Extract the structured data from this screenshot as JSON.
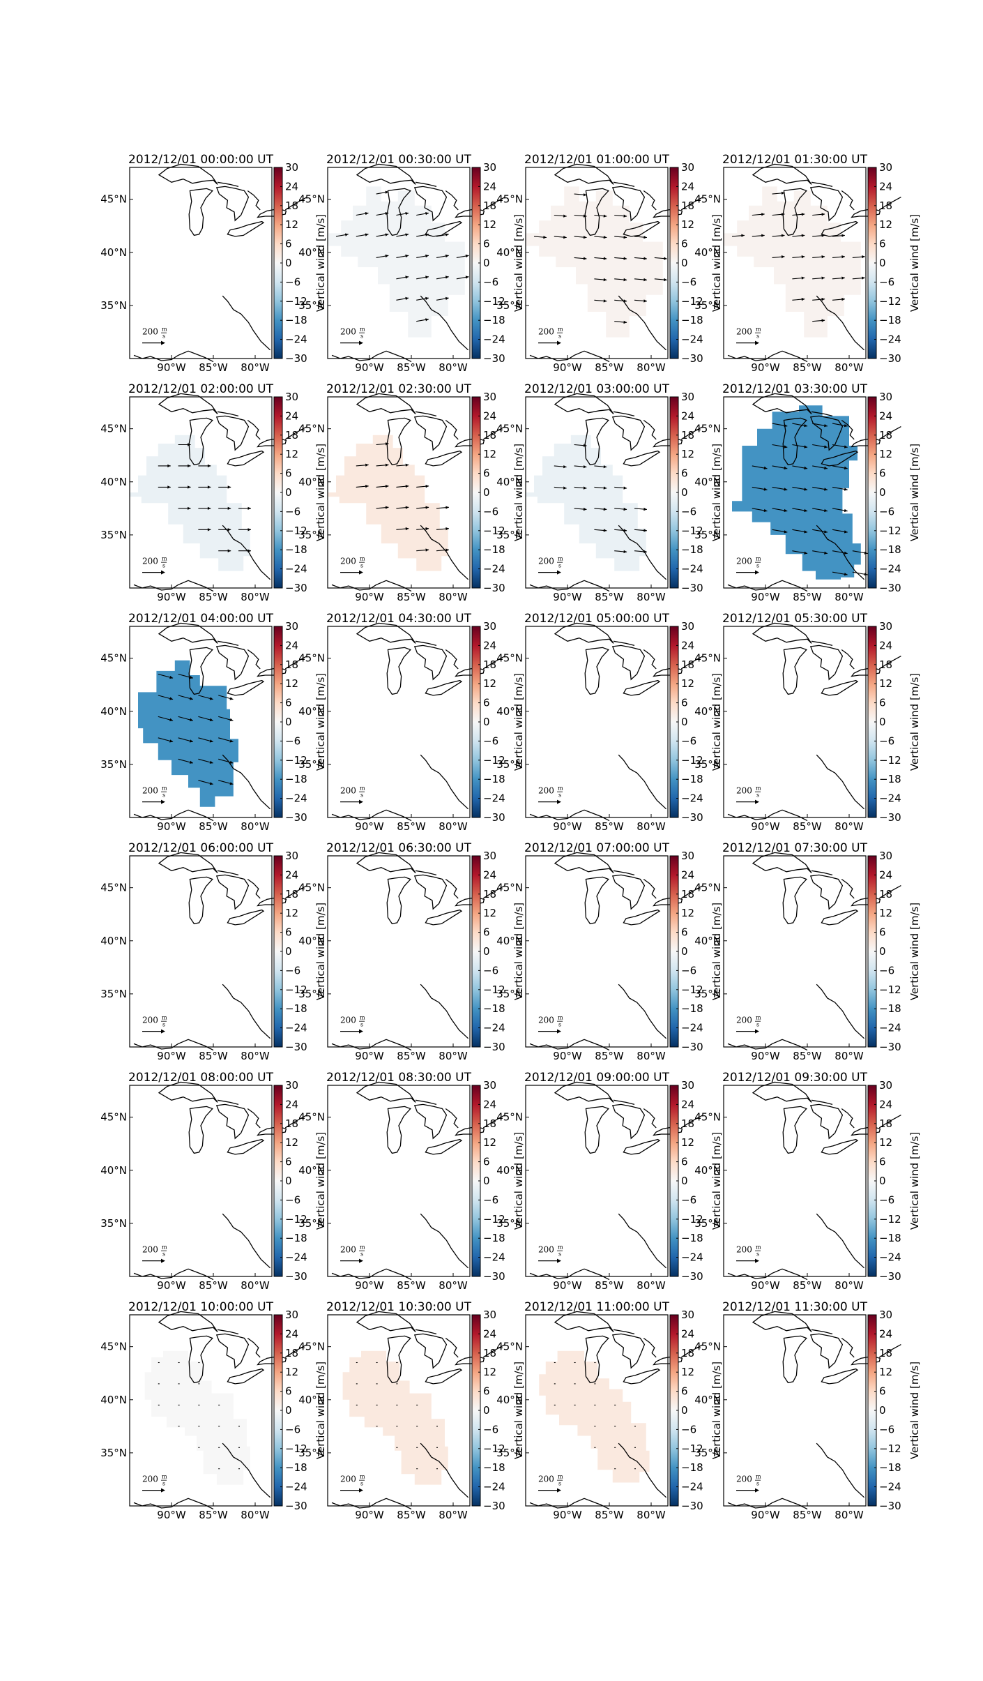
{
  "figure": {
    "colorbar_label": "Vertical wind [m/s]",
    "colorbar_ticks": [
      "30",
      "24",
      "18",
      "12",
      "6",
      "0",
      "−6",
      "−12",
      "−18",
      "−24",
      "−30"
    ],
    "lon_ticks": [
      "90°W",
      "85°W",
      "80°W"
    ],
    "lat_ticks": [
      "45°N",
      "40°N",
      "35°N"
    ],
    "scale_label": "200",
    "scale_unit_num": "m",
    "scale_unit_den": "s"
  },
  "colors": {
    "strong_blue": "#4393c3",
    "light_blue": "#e4eef6",
    "very_light_blue": "#f1f4f8",
    "light_orange": "#fae3d5",
    "very_light_orange": "#fbefe9",
    "light_grey": "#f3f3f3",
    "colorbar_stops": [
      "#67001f",
      "#b2182b",
      "#d6604d",
      "#f4a582",
      "#fddbc7",
      "#f7f7f7",
      "#d1e5f0",
      "#92c5de",
      "#4393c3",
      "#2166ac",
      "#053061"
    ]
  },
  "chart_data": {
    "type": "heatmap",
    "colorscale": "RdBu_r",
    "clim": [
      -30,
      30
    ],
    "xlim_deg_west": [
      95,
      78
    ],
    "ylim_deg_north": [
      30,
      48
    ],
    "panels": [
      {
        "title": "2012/12/01 00:00:00 UT",
        "region": "none",
        "vertical_wind": null,
        "arrow_angle_deg": 0
      },
      {
        "title": "2012/12/01 00:30:00 UT",
        "region": "medium",
        "vertical_wind": -1,
        "arrow_angle_deg": -10
      },
      {
        "title": "2012/12/01 01:00:00 UT",
        "region": "medium",
        "vertical_wind": 1,
        "arrow_angle_deg": 5
      },
      {
        "title": "2012/12/01 01:30:00 UT",
        "region": "medium",
        "vertical_wind": 1,
        "arrow_angle_deg": -5
      },
      {
        "title": "2012/12/01 02:00:00 UT",
        "region": "large",
        "vertical_wind": -2,
        "arrow_angle_deg": 0
      },
      {
        "title": "2012/12/01 02:30:00 UT",
        "region": "large",
        "vertical_wind": 3,
        "arrow_angle_deg": -5
      },
      {
        "title": "2012/12/01 03:00:00 UT",
        "region": "large",
        "vertical_wind": -2,
        "arrow_angle_deg": 5
      },
      {
        "title": "2012/12/01 03:30:00 UT",
        "region": "full",
        "vertical_wind": -18,
        "arrow_angle_deg": 10
      },
      {
        "title": "2012/12/01 04:00:00 UT",
        "region": "full4",
        "vertical_wind": -18,
        "arrow_angle_deg": 15
      },
      {
        "title": "2012/12/01 04:30:00 UT",
        "region": "none",
        "vertical_wind": null,
        "arrow_angle_deg": 0
      },
      {
        "title": "2012/12/01 05:00:00 UT",
        "region": "none",
        "vertical_wind": null,
        "arrow_angle_deg": 0
      },
      {
        "title": "2012/12/01 05:30:00 UT",
        "region": "none",
        "vertical_wind": null,
        "arrow_angle_deg": 0
      },
      {
        "title": "2012/12/01 06:00:00 UT",
        "region": "none",
        "vertical_wind": null,
        "arrow_angle_deg": 0
      },
      {
        "title": "2012/12/01 06:30:00 UT",
        "region": "none",
        "vertical_wind": null,
        "arrow_angle_deg": 0
      },
      {
        "title": "2012/12/01 07:00:00 UT",
        "region": "none",
        "vertical_wind": null,
        "arrow_angle_deg": 0
      },
      {
        "title": "2012/12/01 07:30:00 UT",
        "region": "none",
        "vertical_wind": null,
        "arrow_angle_deg": 0
      },
      {
        "title": "2012/12/01 08:00:00 UT",
        "region": "none",
        "vertical_wind": null,
        "arrow_angle_deg": 0
      },
      {
        "title": "2012/12/01 08:30:00 UT",
        "region": "none",
        "vertical_wind": null,
        "arrow_angle_deg": 0
      },
      {
        "title": "2012/12/01 09:00:00 UT",
        "region": "none",
        "vertical_wind": null,
        "arrow_angle_deg": 0
      },
      {
        "title": "2012/12/01 09:30:00 UT",
        "region": "none",
        "vertical_wind": null,
        "arrow_angle_deg": 0
      },
      {
        "title": "2012/12/01 10:00:00 UT",
        "region": "late",
        "vertical_wind": 0,
        "arrow_angle_deg": 0
      },
      {
        "title": "2012/12/01 10:30:00 UT",
        "region": "late",
        "vertical_wind": 3,
        "arrow_angle_deg": 0
      },
      {
        "title": "2012/12/01 11:00:00 UT",
        "region": "late11",
        "vertical_wind": 3,
        "arrow_angle_deg": 0
      },
      {
        "title": "2012/12/01 11:30:00 UT",
        "region": "none",
        "vertical_wind": null,
        "arrow_angle_deg": 0
      }
    ]
  }
}
